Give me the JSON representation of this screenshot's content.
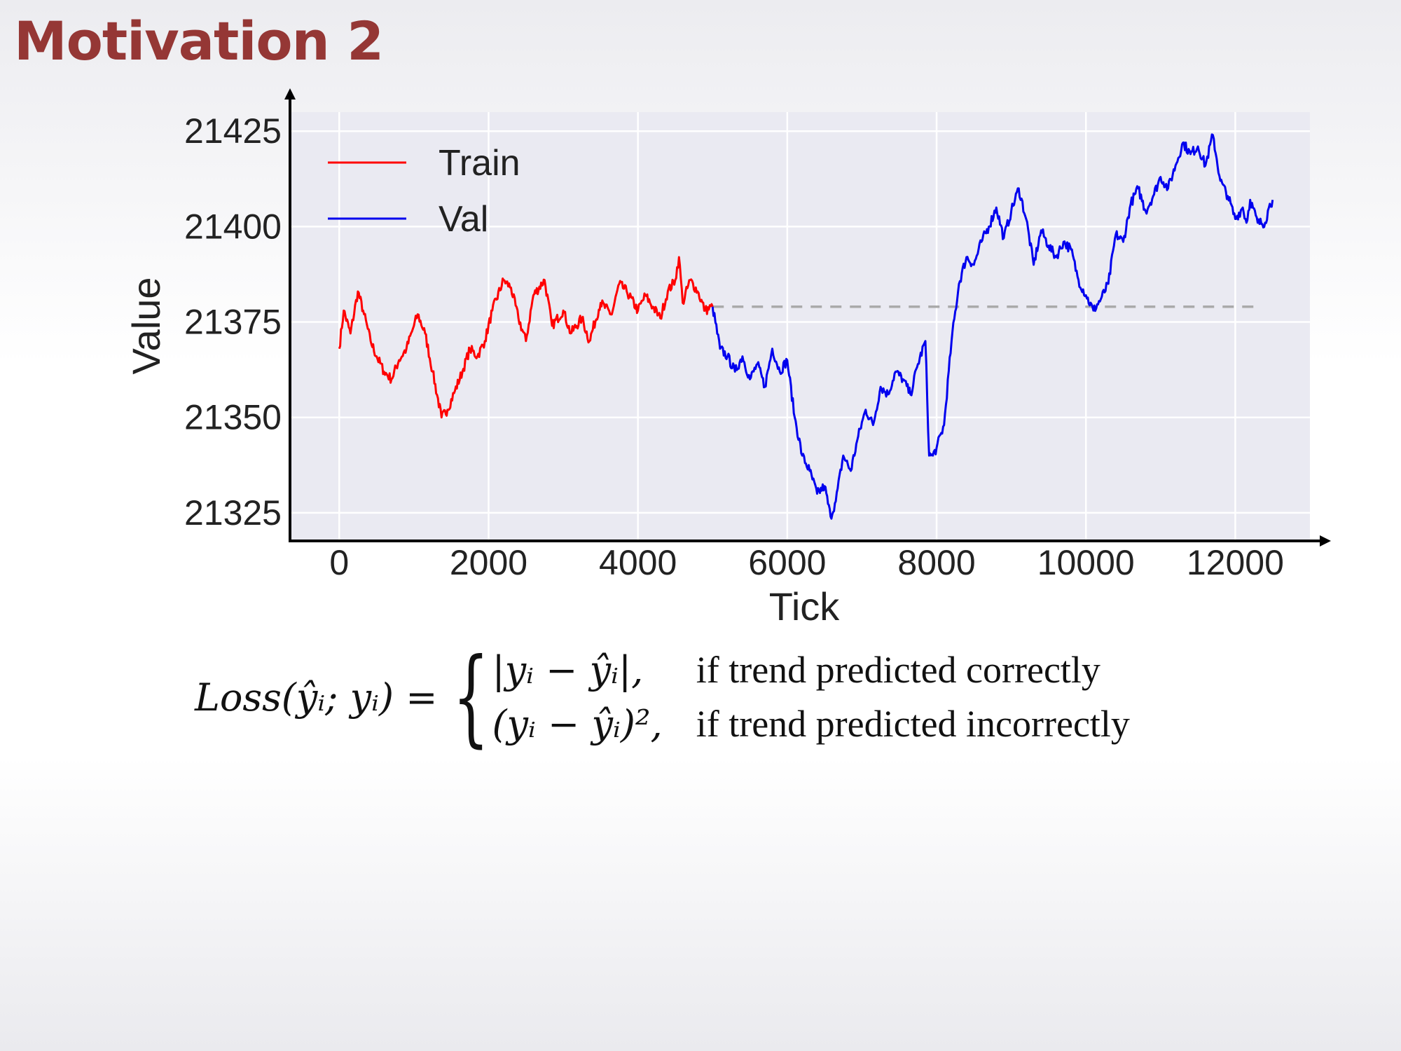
{
  "slide": {
    "title": "Motivation 2"
  },
  "chart_data": {
    "type": "line",
    "xlabel": "Tick",
    "ylabel": "Value",
    "xlim": [
      -650,
      13000
    ],
    "ylim": [
      21318,
      21430
    ],
    "xticks": [
      0,
      2000,
      4000,
      6000,
      8000,
      10000,
      12000
    ],
    "yticks": [
      21325,
      21350,
      21375,
      21400,
      21425
    ],
    "grid": true,
    "legend": "top-left",
    "series": [
      {
        "name": "Train",
        "color": "#ff0000",
        "x": [
          0,
          60,
          150,
          250,
          320,
          420,
          500,
          600,
          700,
          800,
          900,
          1000,
          1050,
          1150,
          1250,
          1370,
          1450,
          1550,
          1650,
          1750,
          1850,
          1950,
          2050,
          2200,
          2300,
          2400,
          2500,
          2600,
          2750,
          2850,
          3000,
          3100,
          3250,
          3350,
          3500,
          3650,
          3750,
          3850,
          4000,
          4100,
          4200,
          4300,
          4400,
          4500,
          4550,
          4600,
          4700,
          4800,
          4900,
          5000
        ],
        "y": [
          21368,
          21378,
          21372,
          21383,
          21378,
          21370,
          21366,
          21362,
          21360,
          21365,
          21368,
          21374,
          21377,
          21372,
          21362,
          21350,
          21352,
          21357,
          21362,
          21368,
          21366,
          21370,
          21378,
          21386,
          21384,
          21376,
          21370,
          21382,
          21386,
          21374,
          21378,
          21372,
          21376,
          21370,
          21380,
          21377,
          21385,
          21383,
          21378,
          21382,
          21379,
          21376,
          21383,
          21386,
          21392,
          21380,
          21386,
          21383,
          21378,
          21379
        ]
      },
      {
        "name": "Val",
        "color": "#0000ee",
        "x": [
          5000,
          5100,
          5200,
          5300,
          5400,
          5500,
          5600,
          5700,
          5800,
          5900,
          6000,
          6100,
          6200,
          6300,
          6400,
          6500,
          6580,
          6650,
          6750,
          6850,
          6950,
          7050,
          7150,
          7250,
          7350,
          7450,
          7550,
          7650,
          7750,
          7850,
          7900,
          7950,
          8000,
          8100,
          8200,
          8300,
          8400,
          8500,
          8600,
          8700,
          8800,
          8900,
          9000,
          9100,
          9200,
          9300,
          9400,
          9500,
          9600,
          9700,
          9800,
          9900,
          10000,
          10100,
          10200,
          10300,
          10400,
          10500,
          10600,
          10700,
          10800,
          10900,
          11000,
          11100,
          11200,
          11300,
          11400,
          11500,
          11600,
          11700,
          11800,
          11900,
          12000,
          12100,
          12150,
          12200,
          12300,
          12400,
          12450,
          12500
        ],
        "y": [
          21379,
          21368,
          21366,
          21362,
          21366,
          21360,
          21364,
          21358,
          21368,
          21362,
          21365,
          21350,
          21340,
          21336,
          21330,
          21332,
          21324,
          21328,
          21340,
          21336,
          21345,
          21352,
          21348,
          21358,
          21356,
          21362,
          21360,
          21356,
          21364,
          21370,
          21340,
          21340,
          21342,
          21348,
          21370,
          21385,
          21392,
          21390,
          21396,
          21400,
          21405,
          21397,
          21404,
          21410,
          21402,
          21390,
          21399,
          21395,
          21392,
          21396,
          21394,
          21386,
          21382,
          21378,
          21381,
          21385,
          21398,
          21396,
          21406,
          21410,
          21404,
          21408,
          21413,
          21410,
          21416,
          21422,
          21419,
          21421,
          21416,
          21424,
          21412,
          21408,
          21402,
          21405,
          21401,
          21407,
          21401,
          21401,
          21405,
          21407
        ]
      }
    ],
    "reference_line": {
      "y": 21379,
      "x_start": 5000,
      "x_end": 12350,
      "color": "#aaaaaa",
      "style": "dashed"
    }
  },
  "formula": {
    "lhs": "Loss(ŷᵢ; yᵢ) =",
    "cases": [
      {
        "expr": "|yᵢ − ŷᵢ|,",
        "condition": "if trend predicted correctly"
      },
      {
        "expr": "(yᵢ − ŷᵢ)²,",
        "condition": "if trend predicted incorrectly"
      }
    ]
  }
}
